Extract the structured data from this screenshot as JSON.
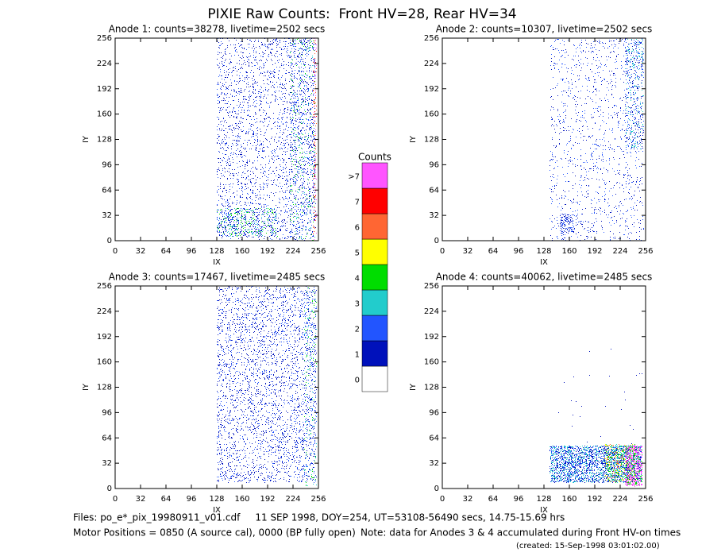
{
  "title": "PIXIE Raw Counts:  Front HV=28, Rear HV=34",
  "chart_data": [
    {
      "type": "heatmap",
      "title": "Anode 1: counts=38278, livetime=2502 secs",
      "x_label": "IX",
      "y_label": "IY",
      "xlim": [
        0,
        256
      ],
      "ylim": [
        0,
        256
      ],
      "xticks": [
        0,
        32,
        64,
        96,
        128,
        160,
        192,
        224,
        256
      ],
      "yticks": [
        0,
        32,
        64,
        96,
        128,
        160,
        192,
        224,
        256
      ]
    },
    {
      "type": "heatmap",
      "title": "Anode 2: counts=10307, livetime=2502 secs",
      "x_label": "IX",
      "y_label": "IY",
      "xlim": [
        0,
        256
      ],
      "ylim": [
        0,
        256
      ],
      "xticks": [
        0,
        32,
        64,
        96,
        128,
        160,
        192,
        224,
        256
      ],
      "yticks": [
        0,
        32,
        64,
        96,
        128,
        160,
        192,
        224,
        256
      ]
    },
    {
      "type": "heatmap",
      "title": "Anode 3: counts=17467, livetime=2485 secs",
      "x_label": "IX",
      "y_label": "IY",
      "xlim": [
        0,
        256
      ],
      "ylim": [
        0,
        256
      ],
      "xticks": [
        0,
        32,
        64,
        96,
        128,
        160,
        192,
        224,
        256
      ],
      "yticks": [
        0,
        32,
        64,
        96,
        128,
        160,
        192,
        224,
        256
      ]
    },
    {
      "type": "heatmap",
      "title": "Anode 4: counts=40062, livetime=2485 secs",
      "x_label": "IX",
      "y_label": "IY",
      "xlim": [
        0,
        256
      ],
      "ylim": [
        0,
        256
      ],
      "xticks": [
        0,
        32,
        64,
        96,
        128,
        160,
        192,
        224,
        256
      ],
      "yticks": [
        0,
        32,
        64,
        96,
        128,
        160,
        192,
        224,
        256
      ]
    }
  ],
  "colorbar": {
    "title": "Counts",
    "labels": [
      "0",
      "1",
      "2",
      "3",
      "4",
      "5",
      "6",
      "7",
      ">7"
    ],
    "colors": [
      "#ffffff",
      "#0011bb",
      "#2255ff",
      "#22cccc",
      "#00dd00",
      "#ffff00",
      "#ff6633",
      "#ff0000",
      "#ff55ff"
    ]
  },
  "footer": {
    "files": "Files: po_e*_pix_19980911_v01.cdf     11 SEP 1998, DOY=254, UT=53108-56490 secs, 14.75-15.69 hrs",
    "motor": "Motor Positions = 0850 (A source cal), 0000 (BP fully open)",
    "note": "Note: data for Anodes 3 & 4 accumulated during Front HV-on times",
    "created": "(created: 15-Sep-1998 03:01:02.00)"
  }
}
